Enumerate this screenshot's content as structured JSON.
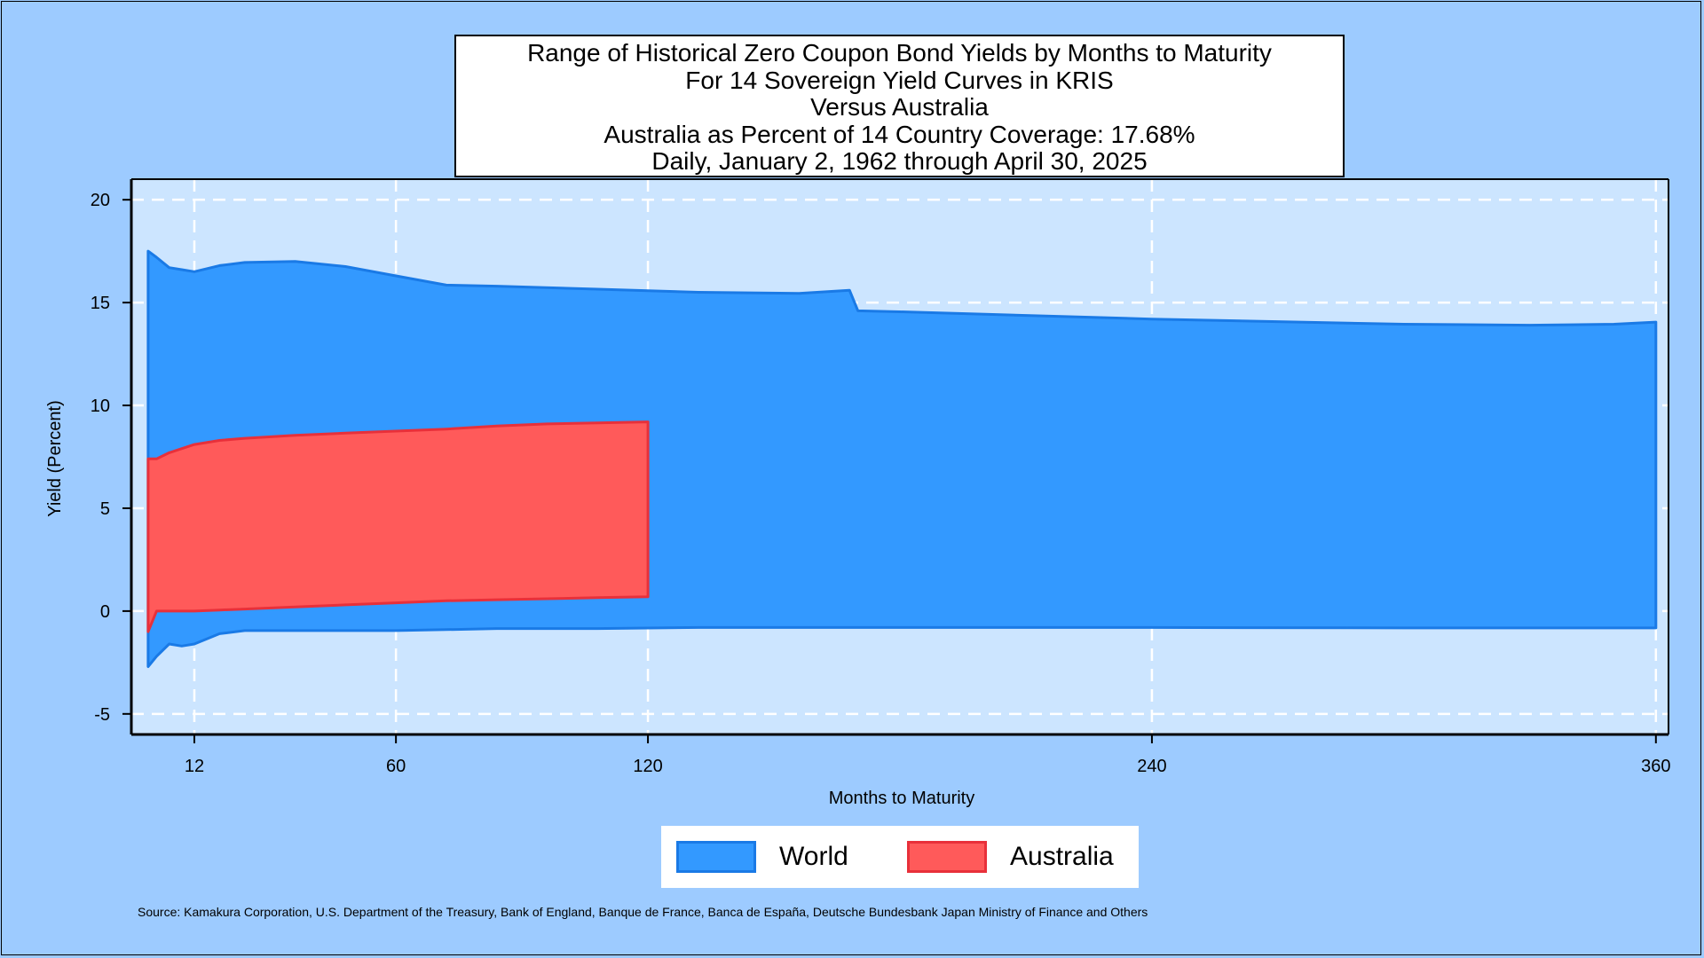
{
  "title_lines": [
    "Range of Historical Zero Coupon Bond Yields by Months to Maturity",
    "For 14 Sovereign Yield Curves in KRIS",
    "Versus Australia",
    "Australia as Percent of 14 Country Coverage: 17.68%",
    "Daily, January 2, 1962 through April 30, 2025"
  ],
  "source_note": "Source: Kamakura Corporation, U.S. Department of the Treasury, Bank of England, Banque de France, Banca de España, Deutsche Bundesbank Japan Ministry of Finance and Others",
  "colors": {
    "background": "#9dcbff",
    "plot_background": "#cce5ff",
    "world_fill": "#3399ff",
    "world_stroke": "#1a7ae6",
    "australia_fill": "#ff5a5a",
    "australia_stroke": "#e8303a"
  },
  "chart_data": {
    "type": "area",
    "xlabel": "Months to Maturity",
    "ylabel": "Yield (Percent)",
    "xlim": [
      -3,
      363
    ],
    "ylim": [
      -6,
      21
    ],
    "x_ticks": [
      12,
      60,
      120,
      240,
      360
    ],
    "y_ticks": [
      -5,
      0,
      5,
      10,
      15,
      20
    ],
    "grid": true,
    "legend_position": "bottom",
    "series": [
      {
        "name": "World",
        "x": [
          1,
          3,
          6,
          9,
          12,
          18,
          24,
          36,
          48,
          60,
          72,
          84,
          108,
          132,
          156,
          168,
          170,
          180,
          240,
          300,
          330,
          350,
          360
        ],
        "upper": [
          17.5,
          17.2,
          16.7,
          16.6,
          16.5,
          16.8,
          16.95,
          17.0,
          16.75,
          16.3,
          15.85,
          15.8,
          15.65,
          15.5,
          15.45,
          15.6,
          14.6,
          14.55,
          14.2,
          13.95,
          13.9,
          13.95,
          14.05
        ],
        "lower": [
          -2.7,
          -2.2,
          -1.6,
          -1.7,
          -1.6,
          -1.1,
          -0.95,
          -0.95,
          -0.95,
          -0.95,
          -0.9,
          -0.85,
          -0.85,
          -0.8,
          -0.8,
          -0.8,
          -0.8,
          -0.8,
          -0.8,
          -0.82,
          -0.82,
          -0.82,
          -0.82
        ]
      },
      {
        "name": "Australia",
        "x": [
          1,
          3,
          6,
          12,
          18,
          24,
          36,
          48,
          60,
          72,
          84,
          96,
          108,
          120
        ],
        "upper": [
          7.4,
          7.4,
          7.7,
          8.1,
          8.3,
          8.4,
          8.55,
          8.65,
          8.75,
          8.85,
          9.0,
          9.1,
          9.15,
          9.2
        ],
        "lower": [
          -1.0,
          0.0,
          0.0,
          0.0,
          0.05,
          0.1,
          0.2,
          0.3,
          0.4,
          0.5,
          0.55,
          0.6,
          0.65,
          0.7
        ]
      }
    ]
  }
}
